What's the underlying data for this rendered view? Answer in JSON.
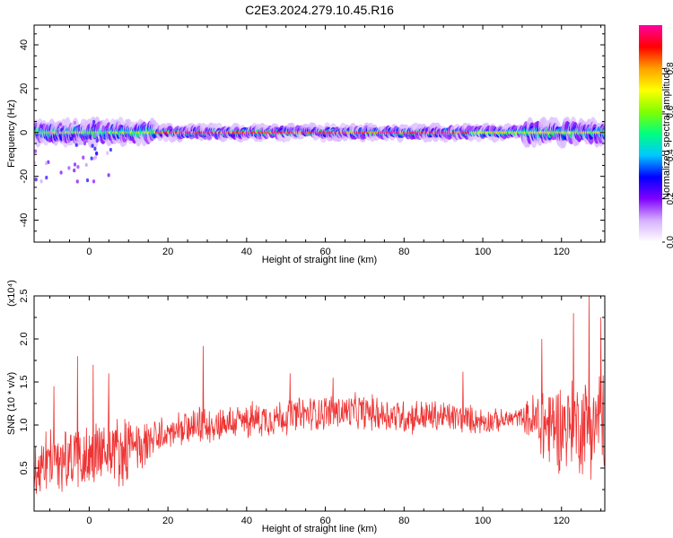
{
  "title": "C2E3.2024.279.10.45.R16",
  "chart_data": [
    {
      "type": "heatmap",
      "xlabel": "Height of straight line (km)",
      "ylabel": "Frequency (Hz)",
      "xlim": [
        -14,
        131
      ],
      "ylim": [
        -50,
        49
      ],
      "xticks": [
        0,
        20,
        40,
        60,
        80,
        100,
        120
      ],
      "yticks": [
        -40,
        -20,
        0,
        20,
        40
      ],
      "colorbar": {
        "label": "Normalized spectral amplitude",
        "range": [
          0,
          1
        ],
        "ticks": [
          "0.0",
          "0.2",
          "0.4",
          "0.6",
          "0.8"
        ],
        "tick_values": [
          0.0,
          0.2,
          0.4,
          0.6,
          0.8
        ],
        "colormap": [
          "#ffffff",
          "#d6b0ff",
          "#8000ff",
          "#0000ff",
          "#00c8ff",
          "#00ff80",
          "#80ff00",
          "#ffff00",
          "#ffa000",
          "#ff0000",
          "#ff00a0"
        ]
      },
      "ridge": {
        "frequency_hz": 0,
        "segments": [
          {
            "x": [
              -14,
              17
            ],
            "peak_amplitude": 0.6
          },
          {
            "x": [
              17,
              97
            ],
            "peak_amplitude": 0.95
          },
          {
            "x": [
              97,
              131
            ],
            "peak_amplitude": 0.65
          }
        ]
      },
      "grid": false
    },
    {
      "type": "line",
      "xlabel": "Height of straight line (km)",
      "ylabel": "SNR (10 * v/v)",
      "yscale_label": "(x10⁴)",
      "xlim": [
        -14,
        131
      ],
      "ylim": [
        0,
        2.5
      ],
      "xticks": [
        0,
        20,
        40,
        60,
        80,
        100,
        120
      ],
      "yticks": [
        "0.5",
        "1.0",
        "1.5",
        "2.0",
        "2.5"
      ],
      "ytick_values": [
        0.5,
        1.0,
        1.5,
        2.0,
        2.5
      ],
      "series_color": "#ee3333",
      "trend": {
        "x": [
          -14,
          -5,
          5,
          10,
          15,
          20,
          30,
          40,
          50,
          60,
          70,
          80,
          90,
          100,
          105,
          110,
          115,
          120,
          125,
          131
        ],
        "y": [
          0.5,
          0.6,
          0.7,
          0.7,
          0.8,
          0.9,
          1.0,
          1.05,
          1.1,
          1.15,
          1.15,
          1.1,
          1.1,
          1.05,
          1.05,
          1.1,
          1.0,
          1.0,
          1.0,
          1.05
        ],
        "noise": [
          0.35,
          0.38,
          0.42,
          0.35,
          0.25,
          0.18,
          0.2,
          0.2,
          0.2,
          0.2,
          0.2,
          0.2,
          0.18,
          0.15,
          0.12,
          0.1,
          0.5,
          0.5,
          0.55,
          0.6
        ]
      },
      "peaks": [
        {
          "x": -9,
          "y": 1.45
        },
        {
          "x": -3,
          "y": 1.8
        },
        {
          "x": 1,
          "y": 1.7
        },
        {
          "x": 5,
          "y": 1.6
        },
        {
          "x": 29,
          "y": 1.92
        },
        {
          "x": 51,
          "y": 1.6
        },
        {
          "x": 62,
          "y": 1.55
        },
        {
          "x": 95,
          "y": 1.62
        },
        {
          "x": 115,
          "y": 2.0
        },
        {
          "x": 123,
          "y": 2.3
        },
        {
          "x": 127,
          "y": 2.5
        },
        {
          "x": 130,
          "y": 2.25
        }
      ],
      "grid": false
    }
  ]
}
